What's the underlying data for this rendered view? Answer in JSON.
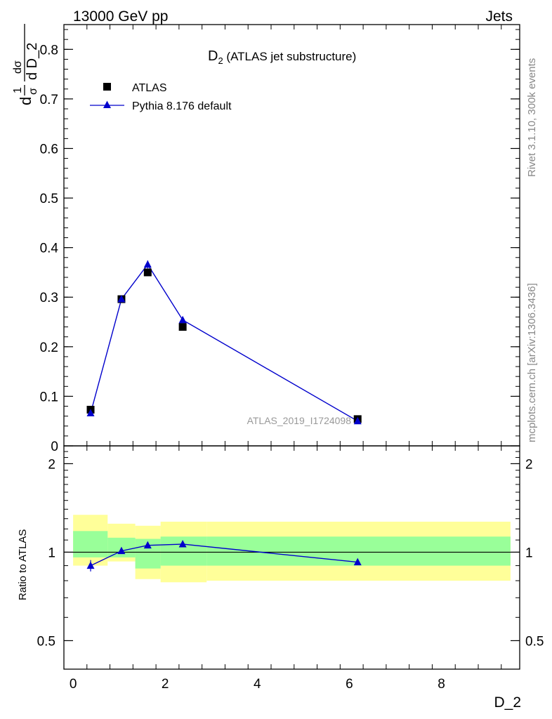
{
  "header": {
    "energy_label": "13000 GeV pp",
    "process_label": "Jets",
    "side_label_rivet": "Rivet 3.1.10,  300k events",
    "side_label_mcplots": "mcplots.cern.ch [arXiv:1306.3436]",
    "watermark": "ATLAS_2019_I1724098"
  },
  "chart_data": [
    {
      "type": "scatter",
      "panel": "main",
      "title_main": "D",
      "title_sub": "2",
      "title_rest": " (ATLAS jet substructure)",
      "ylabel_parts": {
        "one": "1",
        "sigma": "σ",
        "d_sigma": "dσ",
        "d_D2": "d D_2",
        "d": "d"
      },
      "xlim": [
        -0.2,
        9.7
      ],
      "ylim": [
        0,
        0.85
      ],
      "yticks": [
        {
          "v": 0,
          "label": "0"
        },
        {
          "v": 0.1,
          "label": "0.1"
        },
        {
          "v": 0.2,
          "label": "0.2"
        },
        {
          "v": 0.3,
          "label": "0.3"
        },
        {
          "v": 0.4,
          "label": "0.4"
        },
        {
          "v": 0.5,
          "label": "0.5"
        },
        {
          "v": 0.6,
          "label": "0.6"
        },
        {
          "v": 0.7,
          "label": "0.7"
        },
        {
          "v": 0.8,
          "label": "0.8"
        }
      ],
      "legend_position": "top-left",
      "series": [
        {
          "name": "ATLAS",
          "marker": "square",
          "color": "#000000",
          "x": [
            0.38,
            1.05,
            1.62,
            2.38,
            6.18
          ],
          "y": [
            0.073,
            0.296,
            0.35,
            0.24,
            0.054
          ],
          "yerr": [
            0.002,
            0.004,
            0.004,
            0.003,
            0.001
          ]
        },
        {
          "name": "Pythia 8.176 default",
          "marker": "triangle",
          "color": "#0000cc",
          "x": [
            0.38,
            1.05,
            1.62,
            2.38,
            6.18
          ],
          "y": [
            0.066,
            0.296,
            0.366,
            0.254,
            0.05
          ],
          "yerr": [
            0.003,
            0.004,
            0.008,
            0.004,
            0.002
          ]
        }
      ]
    },
    {
      "type": "line",
      "panel": "ratio",
      "ylabel": "Ratio to ATLAS",
      "xlabel": "D_2",
      "xlim": [
        -0.2,
        9.7
      ],
      "ylim": [
        0.4,
        2.3
      ],
      "xticks": [
        {
          "v": 0,
          "label": "0"
        },
        {
          "v": 2,
          "label": "2"
        },
        {
          "v": 4,
          "label": "4"
        },
        {
          "v": 6,
          "label": "6"
        },
        {
          "v": 8,
          "label": "8"
        }
      ],
      "yticks": [
        {
          "v": 0.5,
          "label": "0.5"
        },
        {
          "v": 1,
          "label": "1"
        },
        {
          "v": 2,
          "label": "2"
        }
      ],
      "bands": [
        {
          "x0": 0.0,
          "x1": 0.75,
          "inner": [
            0.96,
            1.18
          ],
          "outer": [
            0.9,
            1.34
          ]
        },
        {
          "x0": 0.75,
          "x1": 1.35,
          "inner": [
            0.96,
            1.12
          ],
          "outer": [
            0.93,
            1.25
          ]
        },
        {
          "x0": 1.35,
          "x1": 1.9,
          "inner": [
            0.88,
            1.11
          ],
          "outer": [
            0.81,
            1.23
          ]
        },
        {
          "x0": 1.9,
          "x1": 2.9,
          "inner": [
            0.9,
            1.13
          ],
          "outer": [
            0.79,
            1.27
          ]
        },
        {
          "x0": 2.9,
          "x1": 9.5,
          "inner": [
            0.9,
            1.13
          ],
          "outer": [
            0.8,
            1.27
          ]
        }
      ],
      "series": [
        {
          "name": "Pythia 8.176 default",
          "color": "#0000cc",
          "x": [
            0.38,
            1.05,
            1.62,
            2.38,
            6.18
          ],
          "y": [
            0.9,
            1.01,
            1.055,
            1.065,
            0.925
          ],
          "yerr": [
            0.04,
            0.012,
            0.015,
            0.01,
            0.01
          ]
        }
      ]
    }
  ]
}
